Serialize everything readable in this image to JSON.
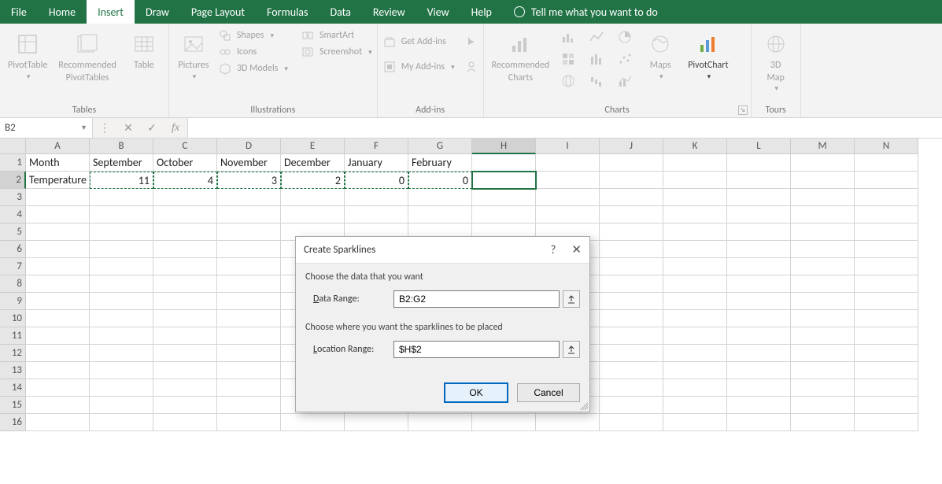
{
  "menubar": {
    "tabs": [
      "File",
      "Home",
      "Insert",
      "Draw",
      "Page Layout",
      "Formulas",
      "Data",
      "Review",
      "View",
      "Help"
    ],
    "active_index": 2,
    "tell_me": "Tell me what you want to do"
  },
  "ribbon": {
    "tables": {
      "pivot": "PivotTable",
      "rec": "Recommended\nPivotTables",
      "table": "Table",
      "label": "Tables"
    },
    "illustrations": {
      "pictures": "Pictures",
      "shapes": "Shapes",
      "icons": "Icons",
      "models": "3D Models",
      "smartart": "SmartArt",
      "screenshot": "Screenshot",
      "label": "Illustrations"
    },
    "addins": {
      "get": "Get Add-ins",
      "my": "My Add-ins",
      "label": "Add-ins"
    },
    "charts": {
      "rec": "Recommended\nCharts",
      "maps": "Maps",
      "pivotchart": "PivotChart",
      "label": "Charts"
    },
    "tours": {
      "map": "3D\nMap",
      "label": "Tours"
    }
  },
  "formula_bar": {
    "name": "B2",
    "fx": "fx",
    "value": ""
  },
  "sheet": {
    "columns": [
      "A",
      "B",
      "C",
      "D",
      "E",
      "F",
      "G",
      "H",
      "I",
      "J",
      "K",
      "L",
      "M",
      "N"
    ],
    "headers": {
      "A": "Month",
      "B": "September",
      "C": "October",
      "D": "November",
      "E": "December",
      "F": "January",
      "G": "February"
    },
    "row2": {
      "A": "Temperature",
      "B": "11",
      "C": "4",
      "D": "3",
      "E": "2",
      "F": "0",
      "G": "0"
    },
    "active_cell": "H2",
    "selected_col": "H",
    "selected_row": 2,
    "marquee_range": "B2:G2",
    "visible_rows": 16
  },
  "dialog": {
    "title": "Create Sparklines",
    "section1": "Choose the data that you want",
    "data_range_label": "Data Range:",
    "data_range_value": "B2:G2",
    "section2": "Choose where you want the sparklines to be placed",
    "location_range_label": "Location Range:",
    "location_range_value": "$H$2",
    "ok": "OK",
    "cancel": "Cancel"
  },
  "colors": {
    "brand": "#217346"
  }
}
